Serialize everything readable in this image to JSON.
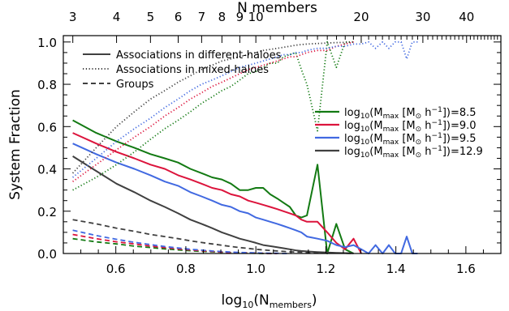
{
  "chart_data": {
    "type": "line",
    "title": "",
    "xlabel": "log10(Nmembers)",
    "xlabel_parts": {
      "prefix": "log",
      "prefix_sub": "10",
      "open": "(N",
      "sub": "members",
      "close": ")"
    },
    "ylabel": "System Fraction",
    "top_xlabel": "N members",
    "xlim": [
      0.45,
      1.7
    ],
    "ylim": [
      0.0,
      1.03
    ],
    "x_ticks": [
      0.6,
      0.8,
      1.0,
      1.2,
      1.4,
      1.6
    ],
    "x_tick_labels": [
      "0.6",
      "0.8",
      "1.0",
      "1.2",
      "1.4",
      "1.6"
    ],
    "y_ticks": [
      0.0,
      0.2,
      0.4,
      0.6,
      0.8,
      1.0
    ],
    "y_tick_labels": [
      "0.0",
      "0.2",
      "0.4",
      "0.6",
      "0.8",
      "1.0"
    ],
    "top_ticks": [
      3,
      4,
      5,
      6,
      7,
      8,
      9,
      10,
      20,
      30,
      40
    ],
    "top_tick_labels": [
      "3",
      "4",
      "5",
      "6",
      "7",
      "8",
      "9",
      "10",
      "20",
      "30",
      "40"
    ],
    "grid": false,
    "style_legend": {
      "placement": "top-left",
      "entries": [
        {
          "label": "Associations in different-haloes",
          "dash": "solid"
        },
        {
          "label": "Associations in mixed-haloes",
          "dash": "dotted"
        },
        {
          "label": "Groups",
          "dash": "dashed"
        }
      ]
    },
    "color_legend": {
      "placement": "center-right",
      "entries": [
        {
          "label": "log10(Mmax [M⊙ h−1])=8.5",
          "value": "8.5",
          "color": "#137a13"
        },
        {
          "label": "log10(Mmax [M⊙ h−1])=9.0",
          "value": "9.0",
          "color": "#dc143c"
        },
        {
          "label": "log10(Mmax [M⊙ h−1])=9.5",
          "value": "9.5",
          "color": "#4169e1"
        },
        {
          "label": "log10(Mmax [M⊙ h−1])=12.9",
          "value": "12.9",
          "color": "#404040"
        }
      ]
    },
    "series": [
      {
        "mass": "8.5",
        "color": "#137a13",
        "kind": "different",
        "dash": "solid",
        "x": [
          0.477,
          0.544,
          0.602,
          0.653,
          0.699,
          0.74,
          0.778,
          0.813,
          0.845,
          0.875,
          0.903,
          0.929,
          0.954,
          0.978,
          1.0,
          1.021,
          1.041,
          1.061,
          1.079,
          1.097,
          1.114,
          1.13,
          1.146,
          1.176,
          1.204,
          1.23,
          1.255,
          1.279
        ],
        "y": [
          0.63,
          0.57,
          0.53,
          0.5,
          0.47,
          0.45,
          0.43,
          0.4,
          0.38,
          0.36,
          0.35,
          0.33,
          0.3,
          0.3,
          0.31,
          0.31,
          0.28,
          0.26,
          0.24,
          0.22,
          0.18,
          0.17,
          0.18,
          0.42,
          0.0,
          0.14,
          0.02,
          0.0
        ]
      },
      {
        "mass": "9.0",
        "color": "#dc143c",
        "kind": "different",
        "dash": "solid",
        "x": [
          0.477,
          0.544,
          0.602,
          0.653,
          0.699,
          0.74,
          0.778,
          0.813,
          0.845,
          0.875,
          0.903,
          0.929,
          0.954,
          0.978,
          1.0,
          1.021,
          1.041,
          1.061,
          1.079,
          1.097,
          1.114,
          1.13,
          1.146,
          1.176,
          1.204,
          1.23,
          1.255,
          1.279,
          1.301
        ],
        "y": [
          0.57,
          0.52,
          0.48,
          0.45,
          0.42,
          0.4,
          0.37,
          0.35,
          0.33,
          0.31,
          0.3,
          0.28,
          0.27,
          0.25,
          0.24,
          0.23,
          0.22,
          0.21,
          0.2,
          0.19,
          0.18,
          0.16,
          0.15,
          0.15,
          0.1,
          0.05,
          0.02,
          0.07,
          0.0
        ]
      },
      {
        "mass": "9.5",
        "color": "#4169e1",
        "kind": "different",
        "dash": "solid",
        "x": [
          0.477,
          0.544,
          0.602,
          0.653,
          0.699,
          0.74,
          0.778,
          0.813,
          0.845,
          0.875,
          0.903,
          0.929,
          0.954,
          0.978,
          1.0,
          1.021,
          1.041,
          1.061,
          1.079,
          1.097,
          1.114,
          1.13,
          1.146,
          1.176,
          1.204,
          1.23,
          1.255,
          1.279,
          1.301,
          1.322,
          1.342,
          1.362,
          1.38,
          1.398,
          1.415,
          1.431,
          1.447,
          1.462
        ],
        "y": [
          0.52,
          0.47,
          0.43,
          0.4,
          0.37,
          0.34,
          0.32,
          0.29,
          0.27,
          0.25,
          0.23,
          0.22,
          0.2,
          0.19,
          0.17,
          0.16,
          0.15,
          0.14,
          0.13,
          0.12,
          0.11,
          0.1,
          0.08,
          0.07,
          0.06,
          0.04,
          0.03,
          0.04,
          0.02,
          0.0,
          0.04,
          0.0,
          0.04,
          0.0,
          0.0,
          0.08,
          0.0,
          0.0
        ]
      },
      {
        "mass": "12.9",
        "color": "#404040",
        "kind": "different",
        "dash": "solid",
        "x": [
          0.477,
          0.544,
          0.602,
          0.653,
          0.699,
          0.74,
          0.778,
          0.813,
          0.845,
          0.875,
          0.903,
          0.929,
          0.954,
          0.978,
          1.0,
          1.021,
          1.041,
          1.061,
          1.079,
          1.097,
          1.114,
          1.13,
          1.146,
          1.176,
          1.204,
          1.23,
          1.255,
          1.279
        ],
        "y": [
          0.46,
          0.39,
          0.33,
          0.29,
          0.25,
          0.22,
          0.19,
          0.16,
          0.14,
          0.12,
          0.1,
          0.085,
          0.07,
          0.06,
          0.05,
          0.04,
          0.035,
          0.03,
          0.025,
          0.02,
          0.015,
          0.012,
          0.01,
          0.007,
          0.005,
          0.003,
          0.002,
          0.001
        ]
      },
      {
        "mass": "8.5",
        "color": "#137a13",
        "kind": "mixed",
        "dash": "dotted",
        "x": [
          0.477,
          0.544,
          0.602,
          0.653,
          0.699,
          0.74,
          0.778,
          0.813,
          0.845,
          0.875,
          0.903,
          0.929,
          0.954,
          0.978,
          1.0,
          1.021,
          1.041,
          1.061,
          1.079,
          1.097,
          1.114,
          1.13,
          1.146,
          1.176,
          1.204,
          1.23,
          1.255,
          1.279
        ],
        "y": [
          0.3,
          0.36,
          0.42,
          0.48,
          0.54,
          0.59,
          0.63,
          0.67,
          0.71,
          0.74,
          0.77,
          0.79,
          0.82,
          0.85,
          0.86,
          0.88,
          0.9,
          0.9,
          0.93,
          0.94,
          0.95,
          0.87,
          0.8,
          0.58,
          1.0,
          0.88,
          1.0,
          1.0
        ]
      },
      {
        "mass": "9.0",
        "color": "#dc143c",
        "kind": "mixed",
        "dash": "dotted",
        "x": [
          0.477,
          0.544,
          0.602,
          0.653,
          0.699,
          0.74,
          0.778,
          0.813,
          0.845,
          0.875,
          0.903,
          0.929,
          0.954,
          0.978,
          1.0,
          1.021,
          1.041,
          1.061,
          1.079,
          1.097,
          1.114,
          1.13,
          1.146,
          1.176,
          1.204,
          1.23,
          1.255,
          1.279
        ],
        "y": [
          0.34,
          0.42,
          0.49,
          0.55,
          0.6,
          0.65,
          0.69,
          0.73,
          0.76,
          0.79,
          0.81,
          0.83,
          0.85,
          0.87,
          0.88,
          0.89,
          0.9,
          0.91,
          0.92,
          0.93,
          0.93,
          0.94,
          0.95,
          0.96,
          0.96,
          0.98,
          0.99,
          1.0
        ]
      },
      {
        "mass": "9.5",
        "color": "#4169e1",
        "kind": "mixed",
        "dash": "dotted",
        "x": [
          0.477,
          0.544,
          0.602,
          0.653,
          0.699,
          0.74,
          0.778,
          0.813,
          0.845,
          0.875,
          0.903,
          0.929,
          0.954,
          0.978,
          1.0,
          1.021,
          1.041,
          1.061,
          1.079,
          1.097,
          1.114,
          1.13,
          1.146,
          1.176,
          1.204,
          1.23,
          1.255,
          1.279,
          1.301,
          1.322,
          1.342,
          1.362,
          1.38,
          1.398,
          1.415,
          1.431,
          1.447,
          1.462
        ],
        "y": [
          0.36,
          0.45,
          0.53,
          0.59,
          0.64,
          0.69,
          0.73,
          0.77,
          0.8,
          0.82,
          0.84,
          0.86,
          0.88,
          0.89,
          0.9,
          0.91,
          0.92,
          0.93,
          0.94,
          0.94,
          0.95,
          0.95,
          0.96,
          0.97,
          0.97,
          0.98,
          0.98,
          0.99,
          0.99,
          1.0,
          0.97,
          1.0,
          0.97,
          1.0,
          1.0,
          0.92,
          1.0,
          1.0
        ]
      },
      {
        "mass": "12.9",
        "color": "#404040",
        "kind": "mixed",
        "dash": "dotted",
        "x": [
          0.477,
          0.544,
          0.602,
          0.653,
          0.699,
          0.74,
          0.778,
          0.813,
          0.845,
          0.875,
          0.903,
          0.929,
          0.954,
          0.978,
          1.0,
          1.021,
          1.041,
          1.061,
          1.079,
          1.097,
          1.114,
          1.13,
          1.146,
          1.176,
          1.204,
          1.23,
          1.255,
          1.279
        ],
        "y": [
          0.38,
          0.5,
          0.6,
          0.67,
          0.73,
          0.77,
          0.81,
          0.84,
          0.87,
          0.89,
          0.91,
          0.92,
          0.93,
          0.94,
          0.95,
          0.96,
          0.965,
          0.97,
          0.975,
          0.98,
          0.985,
          0.988,
          0.99,
          0.993,
          0.995,
          0.997,
          0.998,
          0.999
        ]
      },
      {
        "mass": "8.5",
        "color": "#137a13",
        "kind": "groups",
        "dash": "dashed",
        "x": [
          0.477,
          0.544,
          0.602,
          0.653,
          0.699,
          0.74,
          0.778,
          0.813,
          0.845,
          0.875,
          0.903,
          0.929,
          0.954,
          0.978,
          1.0,
          1.021,
          1.041,
          1.061
        ],
        "y": [
          0.07,
          0.055,
          0.045,
          0.035,
          0.028,
          0.022,
          0.017,
          0.013,
          0.01,
          0.008,
          0.006,
          0.004,
          0.003,
          0.002,
          0.001,
          0.0,
          0.0,
          0.0
        ]
      },
      {
        "mass": "9.0",
        "color": "#dc143c",
        "kind": "groups",
        "dash": "dashed",
        "x": [
          0.477,
          0.544,
          0.602,
          0.653,
          0.699,
          0.74,
          0.778,
          0.813,
          0.845,
          0.875,
          0.903,
          0.929,
          0.954,
          0.978,
          1.0,
          1.021,
          1.041,
          1.061
        ],
        "y": [
          0.09,
          0.07,
          0.055,
          0.045,
          0.035,
          0.028,
          0.022,
          0.017,
          0.013,
          0.01,
          0.007,
          0.005,
          0.004,
          0.003,
          0.002,
          0.001,
          0.0,
          0.0
        ]
      },
      {
        "mass": "9.5",
        "color": "#4169e1",
        "kind": "groups",
        "dash": "dashed",
        "x": [
          0.477,
          0.544,
          0.602,
          0.653,
          0.699,
          0.74,
          0.778,
          0.813,
          0.845,
          0.875,
          0.903,
          0.929,
          0.954,
          0.978,
          1.0,
          1.021,
          1.041,
          1.061,
          1.079,
          1.097
        ],
        "y": [
          0.11,
          0.085,
          0.067,
          0.053,
          0.042,
          0.033,
          0.026,
          0.02,
          0.016,
          0.012,
          0.009,
          0.007,
          0.005,
          0.004,
          0.003,
          0.002,
          0.001,
          0.001,
          0.0,
          0.0
        ]
      },
      {
        "mass": "12.9",
        "color": "#404040",
        "kind": "groups",
        "dash": "dashed",
        "x": [
          0.477,
          0.544,
          0.602,
          0.653,
          0.699,
          0.74,
          0.778,
          0.813,
          0.845,
          0.875,
          0.903,
          0.929,
          0.954,
          0.978,
          1.0,
          1.021,
          1.041,
          1.061,
          1.079,
          1.097,
          1.114,
          1.13,
          1.146,
          1.176,
          1.204,
          1.23,
          1.255,
          1.279
        ],
        "y": [
          0.16,
          0.14,
          0.12,
          0.105,
          0.09,
          0.08,
          0.07,
          0.06,
          0.052,
          0.045,
          0.039,
          0.033,
          0.028,
          0.024,
          0.02,
          0.017,
          0.014,
          0.012,
          0.01,
          0.008,
          0.007,
          0.006,
          0.005,
          0.004,
          0.003,
          0.002,
          0.001,
          0.0
        ]
      }
    ]
  }
}
